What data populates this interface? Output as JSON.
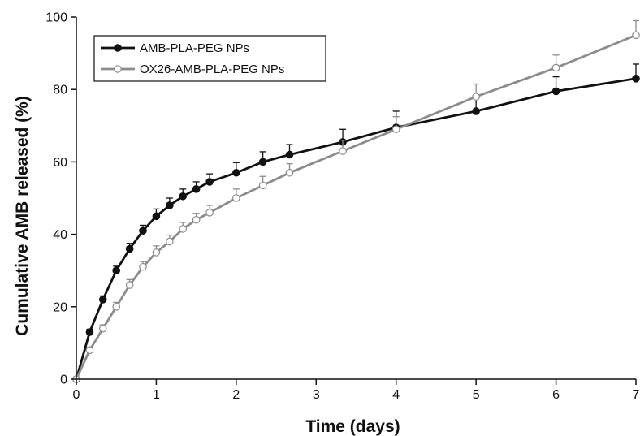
{
  "chart_data": {
    "type": "line",
    "title": "",
    "xlabel": "Time (days)",
    "ylabel": "Cumulative AMB released (%)",
    "xlim": [
      0,
      7
    ],
    "ylim": [
      0,
      100
    ],
    "xticks": [
      0,
      1,
      2,
      3,
      4,
      5,
      6,
      7
    ],
    "yticks": [
      0,
      20,
      40,
      60,
      80,
      100
    ],
    "grid": false,
    "legend_position": "top-left",
    "series": [
      {
        "name": "AMB-PLA-PEG NPs",
        "color": "#111111",
        "marker": "filled-circle",
        "x": [
          0,
          0.167,
          0.333,
          0.5,
          0.667,
          0.833,
          1.0,
          1.167,
          1.333,
          1.5,
          1.667,
          2.0,
          2.333,
          2.667,
          3.333,
          4.0,
          5.0,
          6.0,
          7.0
        ],
        "y": [
          0,
          13,
          22,
          30,
          36,
          41,
          45,
          48,
          50.5,
          52.5,
          54.5,
          57,
          60,
          62,
          65.5,
          69.5,
          74,
          79.5,
          83
        ],
        "error": [
          0,
          0.8,
          1,
          1.2,
          1.5,
          1.5,
          2,
          2,
          2,
          2,
          2.2,
          2.8,
          2.8,
          2.8,
          3.5,
          4.5,
          3.5,
          4,
          4
        ]
      },
      {
        "name": "OX26-AMB-PLA-PEG NPs",
        "color": "#8c8c8c",
        "marker": "open-circle",
        "x": [
          0,
          0.167,
          0.333,
          0.5,
          0.667,
          0.833,
          1.0,
          1.167,
          1.333,
          1.5,
          1.667,
          2.0,
          2.333,
          2.667,
          3.333,
          4.0,
          5.0,
          6.0,
          7.0
        ],
        "y": [
          0,
          8,
          14,
          20,
          26,
          31,
          35,
          38,
          41.5,
          44,
          46,
          50,
          53.5,
          57,
          63,
          69,
          78,
          86,
          95
        ],
        "error": [
          0,
          0.8,
          1,
          1.2,
          1.5,
          1.5,
          1.8,
          1.8,
          1.8,
          1.8,
          2,
          2.5,
          2.5,
          2.5,
          3,
          3.5,
          3.5,
          3.5,
          4
        ]
      }
    ]
  }
}
